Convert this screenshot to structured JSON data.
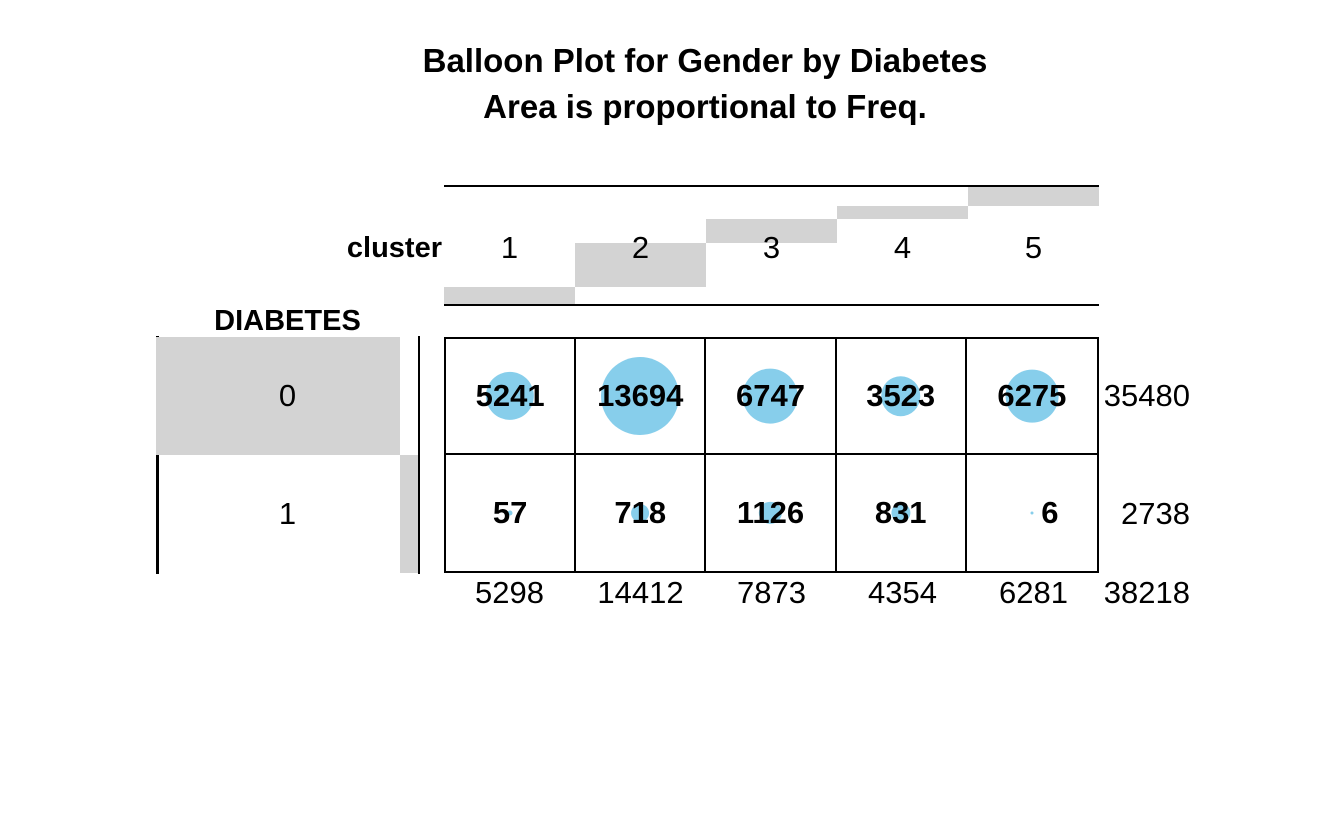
{
  "title": {
    "line1": "Balloon Plot for Gender by Diabetes",
    "line2": "Area is proportional to Freq."
  },
  "chart_data": {
    "type": "balloon",
    "x_axis_label": "cluster",
    "y_axis_label": "DIABETES",
    "columns": [
      "1",
      "2",
      "3",
      "4",
      "5"
    ],
    "rows": [
      "0",
      "1"
    ],
    "values": [
      [
        5241,
        13694,
        6747,
        3523,
        6275
      ],
      [
        57,
        718,
        1126,
        831,
        6
      ]
    ],
    "row_totals": [
      35480,
      2738
    ],
    "col_totals": [
      5298,
      14412,
      7873,
      4354,
      6281
    ],
    "grand_total": 38218,
    "balloon_color": "#87CEEB",
    "margin_bar_color": "#D3D3D3",
    "layout_hints": {
      "area_proportional_to": "Freq",
      "margins_shown_as": "cumulative gray bars",
      "legend": "none",
      "grid": "table borders"
    }
  }
}
